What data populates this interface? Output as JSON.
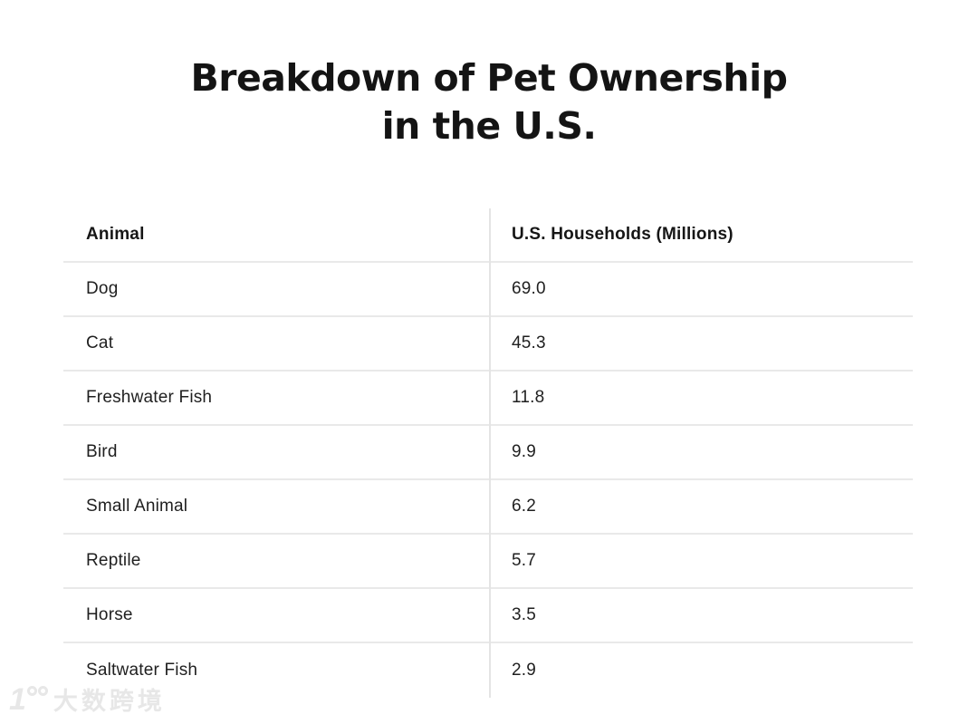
{
  "title": {
    "line1": "Breakdown of Pet Ownership",
    "line2": "in the U.S."
  },
  "table": {
    "columns": [
      "Animal",
      "U.S. Households (Millions)"
    ],
    "rows": [
      {
        "animal": "Dog",
        "households": "69.0"
      },
      {
        "animal": "Cat",
        "households": "45.3"
      },
      {
        "animal": "Freshwater Fish",
        "households": "11.8"
      },
      {
        "animal": "Bird",
        "households": "9.9"
      },
      {
        "animal": "Small Animal",
        "households": "6.2"
      },
      {
        "animal": "Reptile",
        "households": "5.7"
      },
      {
        "animal": "Horse",
        "households": "3.5"
      },
      {
        "animal": "Saltwater Fish",
        "households": "2.9"
      }
    ]
  },
  "watermark": {
    "logo": "1",
    "text": "大数跨境"
  },
  "colors": {
    "text": "#1b1b1b",
    "title": "#141414",
    "separator_line": "#e9e9e9",
    "column_divider": "#e4e4e4",
    "watermark": "#e7e7e7",
    "background": "#ffffff"
  },
  "chart_data": {
    "type": "table",
    "title": "Breakdown of Pet Ownership in the U.S.",
    "columns": [
      "Animal",
      "U.S. Households (Millions)"
    ],
    "categories": [
      "Dog",
      "Cat",
      "Freshwater Fish",
      "Bird",
      "Small Animal",
      "Reptile",
      "Horse",
      "Saltwater Fish"
    ],
    "values": [
      69.0,
      45.3,
      11.8,
      9.9,
      6.2,
      5.7,
      3.5,
      2.9
    ],
    "layout": {
      "grid": "horizontal-row-separators",
      "column_divider": true,
      "outer_border": false
    }
  }
}
